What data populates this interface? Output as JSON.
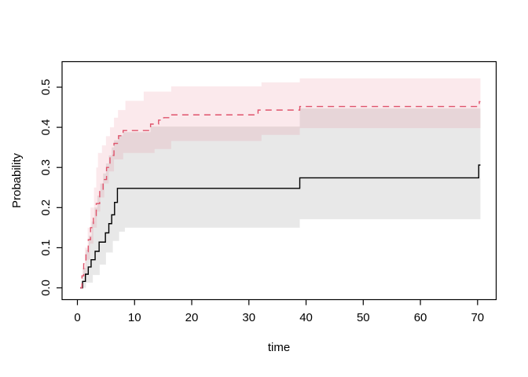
{
  "figure": {
    "background": "#ffffff",
    "box_color": "#000000"
  },
  "chart_data": {
    "type": "line",
    "subtype": "step-curves-with-confidence-bands",
    "title": "",
    "xlabel": "time",
    "ylabel": "Probability",
    "grid": false,
    "legend": "none",
    "xticks": [
      0,
      10,
      20,
      30,
      40,
      50,
      60,
      70
    ],
    "yticks": [
      0.0,
      0.1,
      0.2,
      0.3,
      0.4,
      0.5
    ],
    "ytick_labels": [
      "0.0",
      "0.1",
      "0.2",
      "0.3",
      "0.4",
      "0.5"
    ],
    "xlim": [
      -2.7,
      73.3
    ],
    "ylim": [
      -0.03,
      0.5625
    ],
    "t_end": 70.5,
    "series": [
      {
        "name": "group-1-black-solid",
        "line_color": "#000000",
        "line_style": "solid",
        "band_color": "rgba(0,0,0,0.09)",
        "steps": [
          [
            0.5,
            0
          ],
          [
            0.9,
            0.016
          ],
          [
            1.4,
            0.034
          ],
          [
            1.9,
            0.052
          ],
          [
            2.4,
            0.07
          ],
          [
            3.1,
            0.091
          ],
          [
            3.8,
            0.114
          ],
          [
            4.9,
            0.137
          ],
          [
            5.5,
            0.16
          ],
          [
            6.0,
            0.182
          ],
          [
            6.5,
            0.213
          ],
          [
            7.0,
            0.248
          ],
          [
            38.9,
            0.274
          ],
          [
            70.2,
            0.306
          ]
        ],
        "band_upper": [
          [
            0.5,
            0
          ],
          [
            1.0,
            0.05
          ],
          [
            1.5,
            0.095
          ],
          [
            2.0,
            0.13
          ],
          [
            2.5,
            0.165
          ],
          [
            3.0,
            0.2
          ],
          [
            3.5,
            0.23
          ],
          [
            4.0,
            0.26
          ],
          [
            4.5,
            0.285
          ],
          [
            5.0,
            0.31
          ],
          [
            5.5,
            0.33
          ],
          [
            6.0,
            0.35
          ],
          [
            6.4,
            0.368
          ],
          [
            7.2,
            0.38
          ],
          [
            8.0,
            0.388
          ],
          [
            12.8,
            0.402
          ],
          [
            38.9,
            0.447
          ]
        ],
        "band_lower": [
          [
            0.5,
            0
          ],
          [
            1.5,
            0.013
          ],
          [
            2.7,
            0.032
          ],
          [
            3.9,
            0.058
          ],
          [
            5.0,
            0.088
          ],
          [
            6.2,
            0.117
          ],
          [
            7.3,
            0.14
          ],
          [
            8.3,
            0.15
          ],
          [
            38.9,
            0.171
          ]
        ]
      },
      {
        "name": "group-2-red-dashed",
        "line_color": "#DF536B",
        "line_style": "dashed",
        "band_color": "rgba(223,83,107,0.13)",
        "steps": [
          [
            0.5,
            0
          ],
          [
            0.8,
            0.03
          ],
          [
            1.1,
            0.06
          ],
          [
            1.5,
            0.09
          ],
          [
            1.9,
            0.12
          ],
          [
            2.3,
            0.15
          ],
          [
            2.8,
            0.18
          ],
          [
            3.3,
            0.21
          ],
          [
            3.9,
            0.24
          ],
          [
            4.5,
            0.27
          ],
          [
            5.1,
            0.3
          ],
          [
            5.7,
            0.33
          ],
          [
            6.4,
            0.36
          ],
          [
            7.2,
            0.379
          ],
          [
            8.0,
            0.392
          ],
          [
            12.8,
            0.408
          ],
          [
            14.2,
            0.418
          ],
          [
            15.1,
            0.424
          ],
          [
            16.2,
            0.431
          ],
          [
            31.6,
            0.443
          ],
          [
            38.9,
            0.452
          ],
          [
            70.3,
            0.464
          ]
        ],
        "band_upper": [
          [
            0.5,
            0
          ],
          [
            0.9,
            0.05
          ],
          [
            1.3,
            0.1
          ],
          [
            1.8,
            0.15
          ],
          [
            2.3,
            0.2
          ],
          [
            2.9,
            0.25
          ],
          [
            3.3,
            0.3
          ],
          [
            3.6,
            0.336
          ],
          [
            4.3,
            0.355
          ],
          [
            5.0,
            0.378
          ],
          [
            5.7,
            0.4
          ],
          [
            6.4,
            0.424
          ],
          [
            7.1,
            0.443
          ],
          [
            8.4,
            0.466
          ],
          [
            11.6,
            0.489
          ],
          [
            16.4,
            0.502
          ],
          [
            32.2,
            0.512
          ],
          [
            38.9,
            0.522
          ]
        ],
        "band_lower": [
          [
            0.5,
            0
          ],
          [
            1.0,
            0.03
          ],
          [
            1.6,
            0.07
          ],
          [
            2.2,
            0.11
          ],
          [
            2.8,
            0.15
          ],
          [
            3.4,
            0.19
          ],
          [
            4.0,
            0.225
          ],
          [
            4.7,
            0.26
          ],
          [
            5.5,
            0.29
          ],
          [
            6.4,
            0.32
          ],
          [
            8.0,
            0.336
          ],
          [
            13.5,
            0.346
          ],
          [
            16.4,
            0.366
          ],
          [
            32.2,
            0.381
          ],
          [
            38.9,
            0.398
          ]
        ]
      }
    ]
  }
}
